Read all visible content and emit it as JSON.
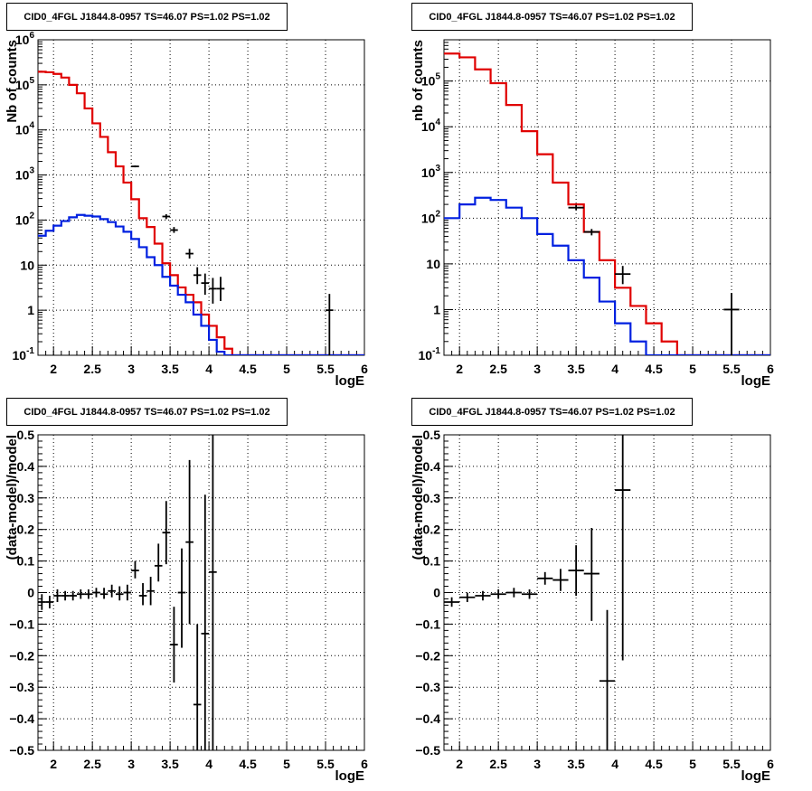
{
  "colors": {
    "data": "#000000",
    "total_model": "#e00000",
    "source_model": "#0020e0",
    "grid": "#000000"
  },
  "chart_data": [
    {
      "type": "line",
      "title": "CID0_4FGL J1844.8-0957 TS=46.07 PS=1.02 PS=1.02",
      "xlabel": "logE",
      "ylabel": "Nb of counts",
      "xlim": [
        1.8,
        6
      ],
      "ylim": [
        0.1,
        1000000
      ],
      "log_y": true,
      "grid": true,
      "x_ticks": [
        "2",
        "2.5",
        "3",
        "3.5",
        "4",
        "4.5",
        "5",
        "5.5",
        "6"
      ],
      "y_ticks": [
        "10^-1",
        "1",
        "10",
        "10^2",
        "10^3",
        "10^4",
        "10^5",
        "10^6"
      ],
      "bin_edges": [
        1.8,
        1.9,
        2.0,
        2.1,
        2.2,
        2.3,
        2.4,
        2.5,
        2.6,
        2.7,
        2.8,
        2.9,
        3.0,
        3.1,
        3.2,
        3.3,
        3.4,
        3.5,
        3.6,
        3.7,
        3.8,
        3.9,
        4.0,
        4.1,
        4.2,
        4.3,
        4.4,
        4.5,
        4.6,
        4.7,
        4.8,
        4.9,
        5.0,
        5.1,
        5.2,
        5.3,
        5.4,
        5.5,
        5.6,
        5.7,
        5.8,
        5.9,
        6.0
      ],
      "series": [
        {
          "key": "total",
          "values": [
            195000,
            190000,
            175000,
            145000,
            100000,
            65000,
            30000,
            14000,
            7000,
            3200,
            1550,
            680,
            290,
            110,
            70,
            30,
            11,
            6,
            3.2,
            2.2,
            1.5,
            0.8,
            0.45,
            0.25,
            0.14,
            0.1,
            0.1,
            0.1,
            0.1,
            0.1,
            0.1,
            0.1,
            0.1,
            0.1,
            0.1,
            0.1,
            0.1,
            0.1,
            0.1,
            0.1,
            0.1,
            0.1
          ]
        },
        {
          "key": "source",
          "values": [
            45,
            58,
            75,
            95,
            115,
            130,
            125,
            120,
            105,
            90,
            72,
            55,
            38,
            25,
            15,
            10,
            5.5,
            3.5,
            2.2,
            1.5,
            0.8,
            0.45,
            0.22,
            0.12,
            0.1,
            0.1,
            0.1,
            0.1,
            0.1,
            0.1,
            0.1,
            0.1,
            0.1,
            0.1,
            0.1,
            0.1,
            0.1,
            0.1,
            0.1,
            0.1,
            0.1,
            0.1
          ]
        }
      ],
      "data_points": [
        {
          "x": 3.05,
          "y": 1550,
          "xe": 0.05,
          "ylo": 1480,
          "yhi": 1620
        },
        {
          "x": 3.45,
          "y": 120,
          "xe": 0.05,
          "ylo": 105,
          "yhi": 135
        },
        {
          "x": 3.55,
          "y": 60,
          "xe": 0.05,
          "ylo": 52,
          "yhi": 70
        },
        {
          "x": 3.75,
          "y": 18,
          "xe": 0.05,
          "ylo": 14,
          "yhi": 23
        },
        {
          "x": 3.85,
          "y": 6,
          "xe": 0.05,
          "ylo": 3.8,
          "yhi": 9
        },
        {
          "x": 3.95,
          "y": 4,
          "xe": 0.05,
          "ylo": 2.2,
          "yhi": 6.5
        },
        {
          "x": 4.05,
          "y": 3,
          "xe": 0.05,
          "ylo": 1.4,
          "yhi": 5.2
        },
        {
          "x": 4.15,
          "y": 3,
          "xe": 0.05,
          "ylo": 1.6,
          "yhi": 5.5
        },
        {
          "x": 5.55,
          "y": 1,
          "xe": 0.05,
          "ylo": 0.1,
          "yhi": 2.3
        }
      ]
    },
    {
      "type": "line",
      "title": "CID0_4FGL J1844.8-0957 TS=46.07 PS=1.02 PS=1.02",
      "xlabel": "logE",
      "ylabel": "nb of counts",
      "xlim": [
        1.8,
        6
      ],
      "ylim": [
        0.1,
        800000
      ],
      "log_y": true,
      "grid": true,
      "x_ticks": [
        "2",
        "2.5",
        "3",
        "3.5",
        "4",
        "4.5",
        "5",
        "5.5",
        "6"
      ],
      "y_ticks": [
        "10^-1",
        "1",
        "10",
        "10^2",
        "10^3",
        "10^4",
        "10^5"
      ],
      "bin_edges": [
        1.8,
        2.0,
        2.2,
        2.4,
        2.6,
        2.8,
        3.0,
        3.2,
        3.4,
        3.6,
        3.8,
        4.0,
        4.2,
        4.4,
        4.6,
        4.8,
        5.0,
        5.2,
        5.4,
        5.6,
        5.8,
        6.0
      ],
      "series": [
        {
          "key": "total",
          "values": [
            400000,
            330000,
            180000,
            90000,
            30000,
            8000,
            2500,
            600,
            200,
            50,
            12,
            3,
            1.2,
            0.5,
            0.2,
            0.1,
            0.1,
            0.1,
            0.1,
            0.1,
            0.1
          ]
        },
        {
          "key": "source",
          "values": [
            100,
            200,
            280,
            250,
            170,
            100,
            45,
            25,
            12,
            5,
            1.5,
            0.5,
            0.2,
            0.1,
            0.1,
            0.1,
            0.1,
            0.1,
            0.1,
            0.1,
            0.1
          ]
        }
      ],
      "data_points": [
        {
          "x": 3.5,
          "y": 170,
          "xe": 0.1,
          "ylo": 150,
          "yhi": 195
        },
        {
          "x": 3.7,
          "y": 50,
          "xe": 0.1,
          "ylo": 42,
          "yhi": 58
        },
        {
          "x": 4.1,
          "y": 6,
          "xe": 0.1,
          "ylo": 3.6,
          "yhi": 9
        },
        {
          "x": 5.5,
          "y": 1,
          "xe": 0.1,
          "ylo": 0.1,
          "yhi": 2.3
        }
      ]
    },
    {
      "type": "scatter",
      "title": "CID0_4FGL J1844.8-0957 TS=46.07 PS=1.02 PS=1.02",
      "xlabel": "logE",
      "ylabel": "(data-model)/model",
      "xlim": [
        1.8,
        6
      ],
      "ylim": [
        -0.5,
        0.5
      ],
      "grid": true,
      "x_ticks": [
        "2",
        "2.5",
        "3",
        "3.5",
        "4",
        "4.5",
        "5",
        "5.5",
        "6"
      ],
      "y_ticks": [
        "-0.5",
        "-0.4",
        "-0.3",
        "-0.2",
        "-0.1",
        "0",
        "0.1",
        "0.2",
        "0.3",
        "0.4",
        "0.5"
      ],
      "data_points": [
        {
          "x": 1.85,
          "y": -0.03,
          "xe": 0.05,
          "ylo": -0.055,
          "yhi": -0.005
        },
        {
          "x": 1.95,
          "y": -0.03,
          "xe": 0.05,
          "ylo": -0.05,
          "yhi": -0.01
        },
        {
          "x": 2.05,
          "y": -0.01,
          "xe": 0.05,
          "ylo": -0.03,
          "yhi": 0.01
        },
        {
          "x": 2.15,
          "y": -0.01,
          "xe": 0.05,
          "ylo": -0.025,
          "yhi": 0.005
        },
        {
          "x": 2.25,
          "y": -0.01,
          "xe": 0.05,
          "ylo": -0.025,
          "yhi": 0.005
        },
        {
          "x": 2.35,
          "y": -0.005,
          "xe": 0.05,
          "ylo": -0.02,
          "yhi": 0.01
        },
        {
          "x": 2.45,
          "y": -0.005,
          "xe": 0.05,
          "ylo": -0.02,
          "yhi": 0.01
        },
        {
          "x": 2.55,
          "y": 0.0,
          "xe": 0.05,
          "ylo": -0.015,
          "yhi": 0.015
        },
        {
          "x": 2.65,
          "y": -0.005,
          "xe": 0.05,
          "ylo": -0.02,
          "yhi": 0.015
        },
        {
          "x": 2.75,
          "y": 0.005,
          "xe": 0.05,
          "ylo": -0.015,
          "yhi": 0.025
        },
        {
          "x": 2.85,
          "y": -0.005,
          "xe": 0.05,
          "ylo": -0.025,
          "yhi": 0.02
        },
        {
          "x": 2.95,
          "y": 0.0,
          "xe": 0.05,
          "ylo": -0.025,
          "yhi": 0.025
        },
        {
          "x": 3.05,
          "y": 0.07,
          "xe": 0.05,
          "ylo": 0.045,
          "yhi": 0.1
        },
        {
          "x": 3.15,
          "y": -0.01,
          "xe": 0.05,
          "ylo": -0.04,
          "yhi": 0.03
        },
        {
          "x": 3.25,
          "y": 0.005,
          "xe": 0.05,
          "ylo": -0.04,
          "yhi": 0.05
        },
        {
          "x": 3.35,
          "y": 0.085,
          "xe": 0.05,
          "ylo": 0.035,
          "yhi": 0.155
        },
        {
          "x": 3.45,
          "y": 0.19,
          "xe": 0.05,
          "ylo": 0.09,
          "yhi": 0.29
        },
        {
          "x": 3.55,
          "y": -0.165,
          "xe": 0.05,
          "ylo": -0.285,
          "yhi": -0.045
        },
        {
          "x": 3.65,
          "y": 0.0,
          "xe": 0.05,
          "ylo": -0.175,
          "yhi": 0.14
        },
        {
          "x": 3.75,
          "y": 0.16,
          "xe": 0.05,
          "ylo": -0.1,
          "yhi": 0.42
        },
        {
          "x": 3.85,
          "y": -0.355,
          "xe": 0.05,
          "ylo": -0.5,
          "yhi": -0.1
        },
        {
          "x": 3.95,
          "y": -0.13,
          "xe": 0.05,
          "ylo": -0.5,
          "yhi": 0.31
        },
        {
          "x": 4.05,
          "y": 0.065,
          "xe": 0.05,
          "ylo": -0.5,
          "yhi": 0.5
        }
      ]
    },
    {
      "type": "scatter",
      "title": "CID0_4FGL J1844.8-0957 TS=46.07 PS=1.02 PS=1.02",
      "xlabel": "logE",
      "ylabel": "(data-model)/model",
      "xlim": [
        1.8,
        6
      ],
      "ylim": [
        -0.5,
        0.5
      ],
      "grid": true,
      "x_ticks": [
        "2",
        "2.5",
        "3",
        "3.5",
        "4",
        "4.5",
        "5",
        "5.5",
        "6"
      ],
      "y_ticks": [
        "-0.5",
        "-0.4",
        "-0.3",
        "-0.2",
        "-0.1",
        "0",
        "0.1",
        "0.2",
        "0.3",
        "0.4",
        "0.5"
      ],
      "data_points": [
        {
          "x": 1.9,
          "y": -0.03,
          "xe": 0.1,
          "ylo": -0.045,
          "yhi": -0.015
        },
        {
          "x": 2.1,
          "y": -0.015,
          "xe": 0.1,
          "ylo": -0.03,
          "yhi": 0.0
        },
        {
          "x": 2.3,
          "y": -0.01,
          "xe": 0.1,
          "ylo": -0.025,
          "yhi": 0.005
        },
        {
          "x": 2.5,
          "y": -0.005,
          "xe": 0.1,
          "ylo": -0.02,
          "yhi": 0.01
        },
        {
          "x": 2.7,
          "y": 0.0,
          "xe": 0.1,
          "ylo": -0.015,
          "yhi": 0.015
        },
        {
          "x": 2.9,
          "y": -0.005,
          "xe": 0.1,
          "ylo": -0.02,
          "yhi": 0.01
        },
        {
          "x": 3.1,
          "y": 0.045,
          "xe": 0.1,
          "ylo": 0.025,
          "yhi": 0.065
        },
        {
          "x": 3.3,
          "y": 0.04,
          "xe": 0.1,
          "ylo": 0.005,
          "yhi": 0.075
        },
        {
          "x": 3.5,
          "y": 0.07,
          "xe": 0.1,
          "ylo": -0.01,
          "yhi": 0.15
        },
        {
          "x": 3.7,
          "y": 0.06,
          "xe": 0.1,
          "ylo": -0.09,
          "yhi": 0.205
        },
        {
          "x": 3.9,
          "y": -0.28,
          "xe": 0.1,
          "ylo": -0.5,
          "yhi": -0.055
        },
        {
          "x": 4.1,
          "y": 0.325,
          "xe": 0.1,
          "ylo": -0.215,
          "yhi": 0.5
        }
      ]
    }
  ]
}
